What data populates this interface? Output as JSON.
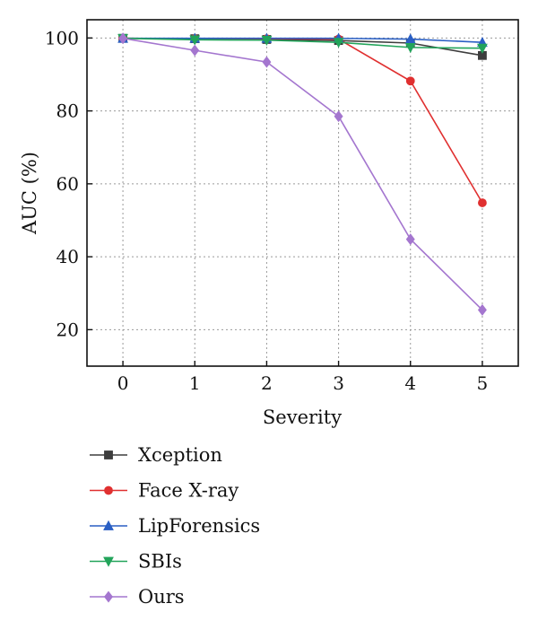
{
  "chart_data": {
    "type": "line",
    "title": "",
    "xlabel": "Severity",
    "ylabel": "AUC (%)",
    "x": [
      0,
      1,
      2,
      3,
      4,
      5
    ],
    "xlim": [
      -0.5,
      5.5
    ],
    "ylim": [
      10,
      105
    ],
    "xticks": [
      0,
      1,
      2,
      3,
      4,
      5
    ],
    "yticks": [
      20,
      40,
      60,
      80,
      100
    ],
    "grid": true,
    "legend_position": "bottom",
    "series": [
      {
        "name": "Xception",
        "color": "#3d3d3d",
        "marker": "square",
        "values": [
          99.9,
          99.8,
          99.6,
          99.3,
          98.6,
          95.2
        ]
      },
      {
        "name": "Face X-ray",
        "color": "#e03030",
        "marker": "circle",
        "values": [
          99.9,
          99.8,
          99.8,
          99.7,
          88.2,
          54.8
        ]
      },
      {
        "name": "LipForensics",
        "color": "#2a5fc4",
        "marker": "triangle-up",
        "values": [
          99.9,
          99.9,
          99.9,
          99.9,
          99.7,
          98.8
        ]
      },
      {
        "name": "SBIs",
        "color": "#22a45a",
        "marker": "triangle-down",
        "values": [
          99.9,
          99.5,
          99.4,
          98.8,
          97.4,
          97.2
        ]
      },
      {
        "name": "Ours",
        "color": "#a476cf",
        "marker": "diamond",
        "values": [
          99.9,
          96.6,
          93.4,
          78.5,
          44.8,
          25.4
        ]
      }
    ]
  }
}
